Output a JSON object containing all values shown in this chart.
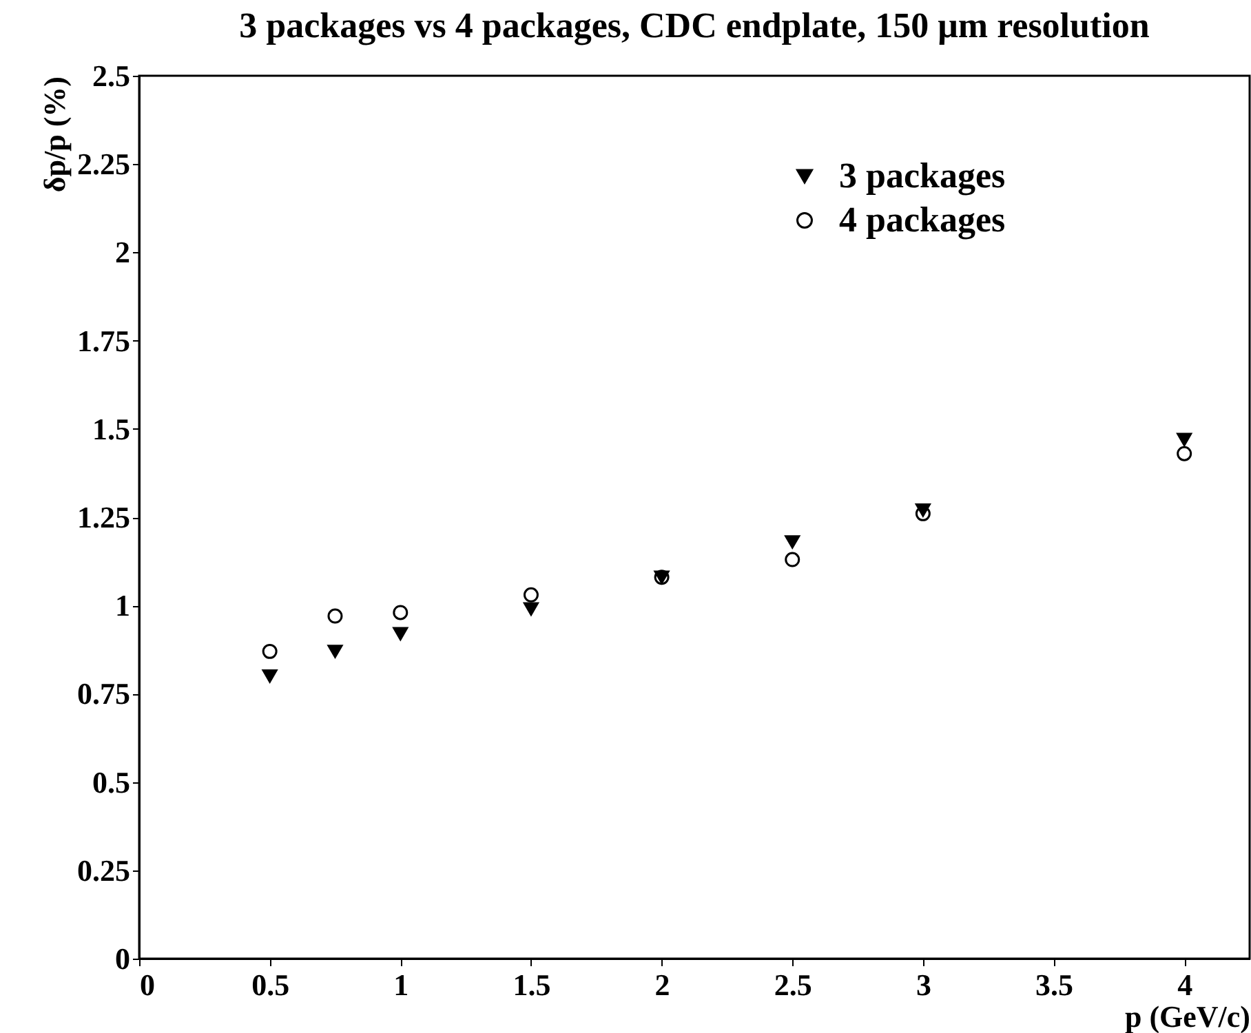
{
  "chart_data": {
    "type": "scatter",
    "title": "3 packages vs 4 packages, CDC endplate, 150 μm resolution",
    "xlabel": "p (GeV/c)",
    "ylabel": "δp/p (%)",
    "x": [
      0.5,
      0.75,
      1,
      1.5,
      2,
      2.5,
      3,
      4
    ],
    "series": [
      {
        "name": "3 packages",
        "color": "#000000",
        "marker": "triangle",
        "values": [
          0.8,
          0.87,
          0.92,
          0.99,
          1.08,
          1.18,
          1.27,
          1.47
        ]
      },
      {
        "name": "4 packages",
        "color": "#000000",
        "marker": "circle",
        "values": [
          0.87,
          0.97,
          0.98,
          1.03,
          1.08,
          1.13,
          1.26,
          1.43
        ]
      }
    ],
    "xlim": [
      0,
      4.25
    ],
    "xticks": [
      0,
      0.5,
      1,
      1.5,
      2,
      2.5,
      3,
      3.5,
      4
    ],
    "ylim": [
      0,
      2.5
    ],
    "yticks": [
      0,
      0.25,
      0.5,
      0.75,
      1,
      1.25,
      1.5,
      1.75,
      2,
      2.25,
      2.5
    ],
    "legend": "top right",
    "grid": false
  }
}
